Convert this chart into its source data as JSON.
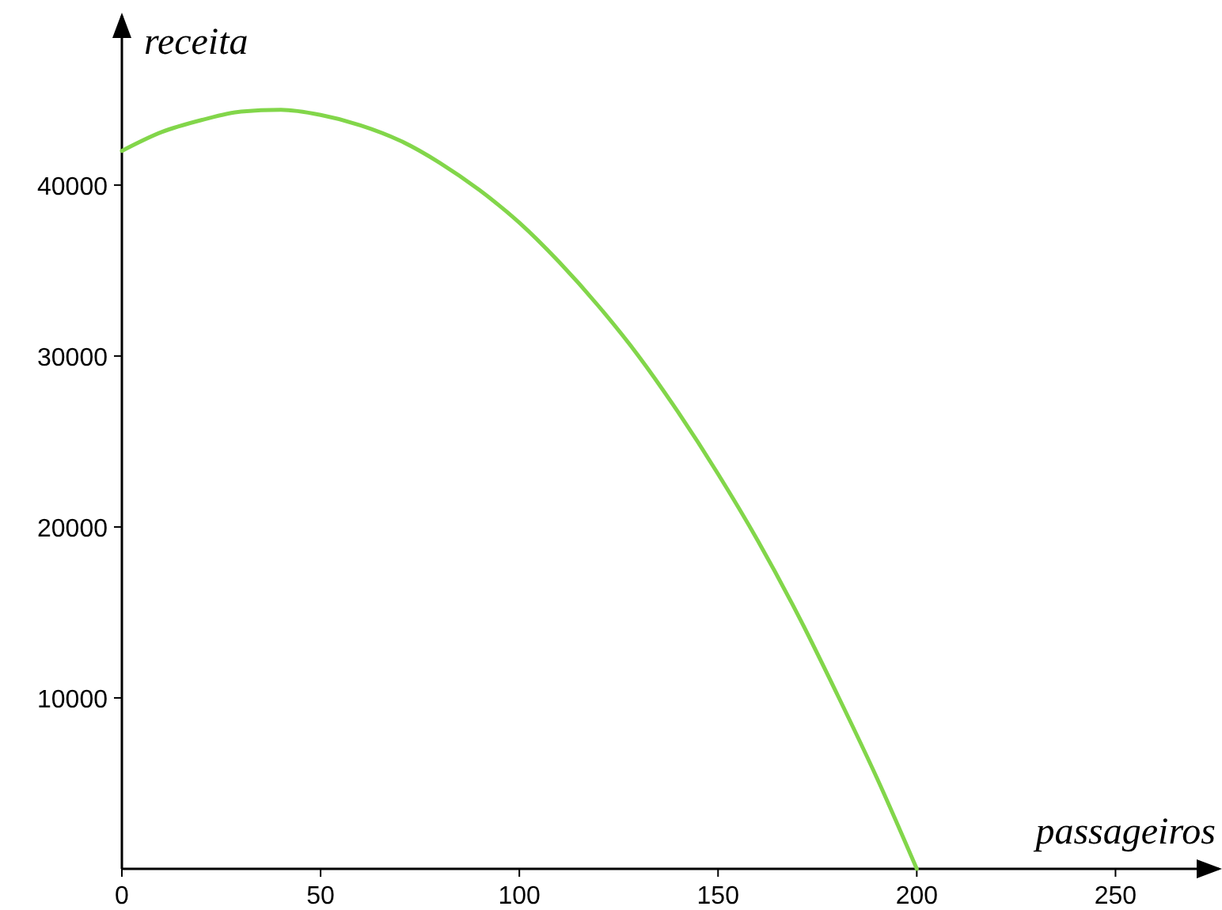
{
  "chart_data": {
    "type": "line",
    "xlabel": "passageiros",
    "ylabel": "receita",
    "x": [
      0,
      10,
      20,
      30,
      40,
      50,
      60,
      70,
      80,
      90,
      100,
      110,
      120,
      130,
      140,
      150,
      160,
      170,
      180,
      190,
      200
    ],
    "series": [
      {
        "color": "#82d64a",
        "values": [
          42000,
          43100,
          43800,
          44300,
          44400,
          44100,
          43500,
          42600,
          41300,
          39700,
          37800,
          35500,
          32900,
          30000,
          26700,
          23100,
          19200,
          14900,
          10200,
          5300,
          0
        ]
      }
    ],
    "xlim": [
      0,
      276
    ],
    "xticks": [
      0,
      50,
      100,
      150,
      200,
      250
    ],
    "ylim": [
      0,
      49900
    ],
    "yticks": [
      10000,
      20000,
      30000,
      40000
    ],
    "grid": false,
    "marker": "none",
    "line_style": "solid"
  }
}
